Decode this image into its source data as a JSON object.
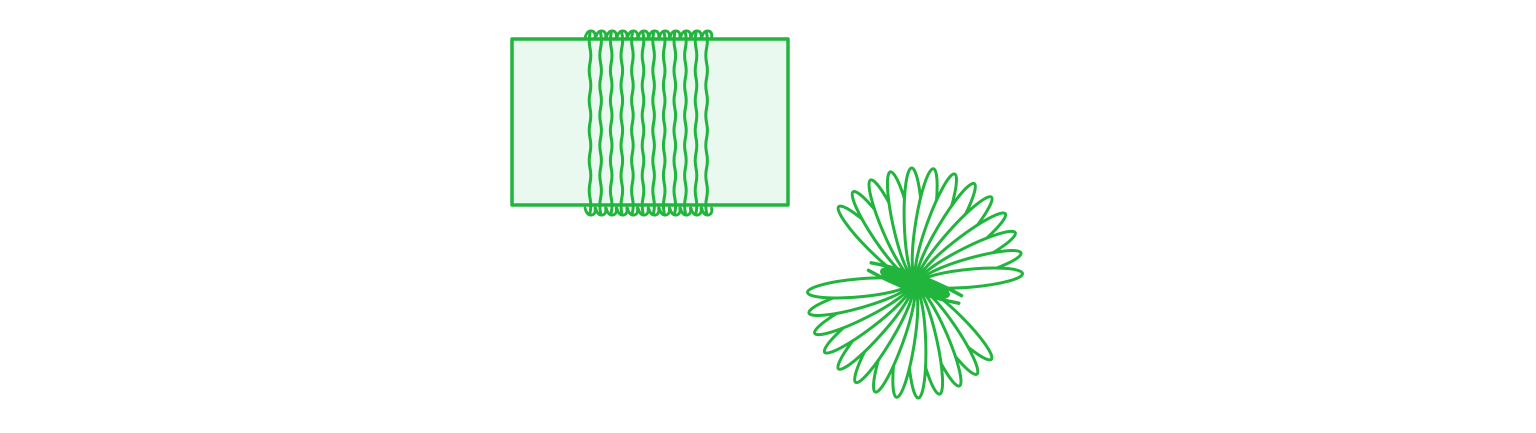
{
  "illustration": {
    "palette": {
      "stroke": "#22b53e",
      "card_fill": "#eaf9ef",
      "background": "#ffffff"
    },
    "steps": [
      {
        "id": "wrapped-card",
        "icon": "yarn-wrapped-card-icon",
        "wraps": 12
      },
      {
        "id": "tied-pompom",
        "icon": "yarn-tied-pompom-icon",
        "loops_per_side": 13
      }
    ]
  }
}
